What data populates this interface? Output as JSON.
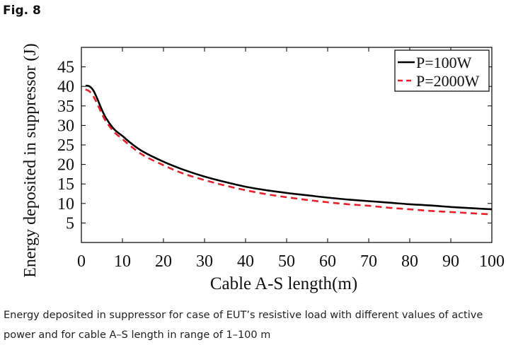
{
  "figure": {
    "label": "Fig. 8",
    "caption": "Energy deposited in suppressor for case of EUT’s resistive load with different values of active power and for cable A–S length in range of 1–100 m"
  },
  "colors": {
    "series_1": "#000000",
    "series_2": "#e8202a"
  },
  "chart_data": {
    "type": "line",
    "title": "",
    "xlabel": "Cable A-S length(m)",
    "ylabel": "Energy deposited in suppressor (J)",
    "xlim": [
      0,
      100
    ],
    "ylim": [
      0,
      50
    ],
    "xticks": [
      0,
      10,
      20,
      30,
      40,
      50,
      60,
      70,
      80,
      90,
      100
    ],
    "yticks": [
      5,
      10,
      15,
      20,
      25,
      30,
      35,
      40,
      45
    ],
    "grid": false,
    "legend_position": "top-right",
    "x": [
      1,
      2,
      3,
      4,
      5,
      6,
      8,
      10,
      12,
      15,
      20,
      25,
      30,
      35,
      40,
      45,
      50,
      55,
      60,
      65,
      70,
      75,
      80,
      85,
      90,
      95,
      100
    ],
    "series": [
      {
        "name": "P=100W",
        "style": "solid",
        "values": [
          40.2,
          40.0,
          38.8,
          36.5,
          34.0,
          31.9,
          29.0,
          27.3,
          25.5,
          23.3,
          20.7,
          18.6,
          16.9,
          15.5,
          14.3,
          13.4,
          12.7,
          12.1,
          11.5,
          11.0,
          10.6,
          10.2,
          9.8,
          9.5,
          9.1,
          8.8,
          8.5
        ]
      },
      {
        "name": "P=2000W",
        "style": "dashed",
        "values": [
          39.2,
          38.7,
          37.3,
          35.2,
          33.0,
          31.0,
          28.3,
          26.5,
          24.7,
          22.4,
          19.8,
          17.6,
          16.0,
          14.6,
          13.4,
          12.4,
          11.6,
          10.9,
          10.3,
          9.8,
          9.4,
          8.9,
          8.5,
          8.1,
          7.8,
          7.5,
          7.2
        ]
      }
    ]
  }
}
